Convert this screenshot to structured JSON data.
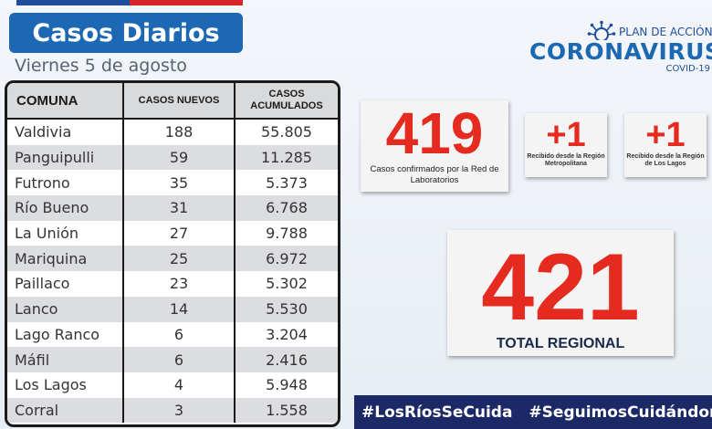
{
  "header": {
    "title": "Casos Diarios",
    "date": "Viernes 5 de agosto"
  },
  "table": {
    "headers": [
      "COMUNA",
      "CASOS NUEVOS",
      "CASOS ACUMULADOS"
    ],
    "rows": [
      {
        "comuna": "Valdivia",
        "nuevos": "188",
        "acumulados": "55.805"
      },
      {
        "comuna": "Panguipulli",
        "nuevos": "59",
        "acumulados": "11.285"
      },
      {
        "comuna": "Futrono",
        "nuevos": "35",
        "acumulados": "5.373"
      },
      {
        "comuna": "Río Bueno",
        "nuevos": "31",
        "acumulados": "6.768"
      },
      {
        "comuna": "La Unión",
        "nuevos": "27",
        "acumulados": "9.788"
      },
      {
        "comuna": "Mariquina",
        "nuevos": "25",
        "acumulados": "6.972"
      },
      {
        "comuna": "Paillaco",
        "nuevos": "23",
        "acumulados": "5.302"
      },
      {
        "comuna": "Lanco",
        "nuevos": "14",
        "acumulados": "5.530"
      },
      {
        "comuna": "Lago Ranco",
        "nuevos": "6",
        "acumulados": "3.204"
      },
      {
        "comuna": "Máfil",
        "nuevos": "6",
        "acumulados": "2.416"
      },
      {
        "comuna": "Los Lagos",
        "nuevos": "4",
        "acumulados": "5.948"
      },
      {
        "comuna": "Corral",
        "nuevos": "3",
        "acumulados": "1.558"
      }
    ]
  },
  "logo": {
    "plan": "PLAN DE ACCIÓN",
    "word": "CORONAVIRUS",
    "sub": "COVID-19"
  },
  "stats": {
    "confirmed": {
      "value": "419",
      "caption": "Casos confirmados por la Red de Laboratorios"
    },
    "from_rm": {
      "value": "+1",
      "caption": "Recibido desde la Región Metropolitana"
    },
    "from_lagos": {
      "value": "+1",
      "caption": "Recibido desde la Región de Los Lagos"
    },
    "total": {
      "value": "421",
      "caption": "TOTAL REGIONAL"
    }
  },
  "hashtags": [
    "#LosRíosSeCuida",
    "#SeguimosCuidándonos"
  ],
  "colors": {
    "title_blue": "#1d68b3",
    "accent_red": "#e52b20",
    "banner_navy": "#1b2a66"
  }
}
